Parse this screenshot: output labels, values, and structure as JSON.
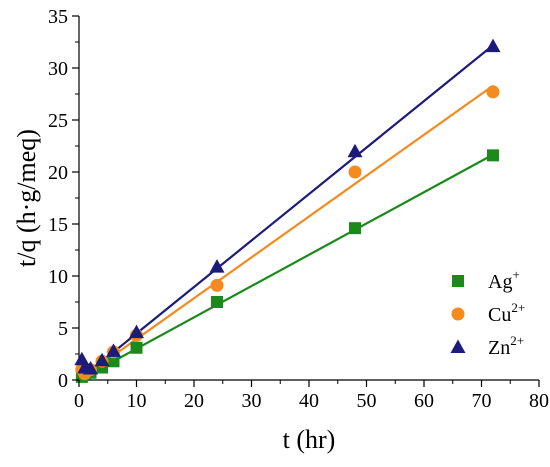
{
  "chart_data": {
    "type": "scatter",
    "xlabel": "t (hr)",
    "ylabel": "t/q (h·g/meq)",
    "xlim": [
      0,
      80
    ],
    "ylim": [
      0,
      35
    ],
    "xticks": [
      0,
      10,
      20,
      30,
      40,
      50,
      60,
      70,
      80
    ],
    "yticks": [
      0,
      5,
      10,
      15,
      20,
      25,
      30,
      35
    ],
    "grid": false,
    "legend_position": "bottom-right",
    "series": [
      {
        "name": "Ag",
        "charge": "+",
        "marker": "square",
        "color": "#1a8a1a",
        "x": [
          0.5,
          1,
          2,
          4,
          6,
          10,
          24,
          48,
          72
        ],
        "y": [
          0.3,
          0.6,
          0.7,
          1.2,
          1.8,
          3.1,
          7.5,
          14.6,
          21.6
        ],
        "fit": {
          "slope": 0.301,
          "intercept": 0.0
        }
      },
      {
        "name": "Cu",
        "charge": "2+",
        "marker": "circle",
        "color": "#f58a1f",
        "x": [
          0.5,
          1,
          2,
          4,
          6,
          10,
          24,
          48,
          72
        ],
        "y": [
          1.0,
          0.6,
          1.0,
          1.8,
          2.7,
          4.3,
          9.1,
          20.0,
          27.7
        ],
        "fit": {
          "slope": 0.393,
          "intercept": 0.0
        }
      },
      {
        "name": "Zn",
        "charge": "2+",
        "marker": "triangle",
        "color": "#1b1b7a",
        "x": [
          0.5,
          1,
          2,
          4,
          6,
          10,
          24,
          48,
          72
        ],
        "y": [
          2.0,
          1.2,
          1.1,
          1.9,
          2.8,
          4.6,
          10.9,
          22.0,
          32.1
        ],
        "fit": {
          "slope": 0.447,
          "intercept": 0.0
        }
      }
    ]
  }
}
